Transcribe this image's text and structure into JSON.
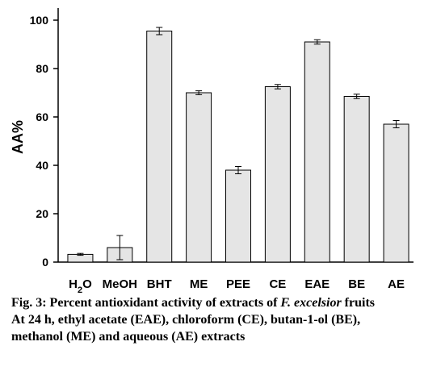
{
  "chart_data": {
    "type": "bar",
    "categories": [
      "H2O",
      "MeOH",
      "BHT",
      "ME",
      "PEE",
      "CE",
      "EAE",
      "BE",
      "AE"
    ],
    "values": [
      3.2,
      6.0,
      95.5,
      70.0,
      38.0,
      72.5,
      91.0,
      68.5,
      57.0
    ],
    "errors": [
      0.4,
      5.0,
      1.5,
      0.8,
      1.5,
      0.9,
      0.9,
      0.9,
      1.5
    ],
    "ylabel": "AA%",
    "ylim": [
      0,
      100
    ],
    "yticks": [
      0,
      20,
      40,
      60,
      80,
      100
    ],
    "grid": false,
    "legend": "none",
    "bar_color": "#e5e5e5",
    "edge_color": "#000000"
  },
  "caption": {
    "figure_label": "Fig. 3:",
    "title_prefix": "Percent antioxidant activity of extracts of",
    "species": "F. excelsior",
    "title_suffix": "fruits",
    "note_line1": "At 24 h, ethyl acetate (EAE), chloroform (CE), butan-1-ol (BE),",
    "note_line2": "methanol (ME) and aqueous (AE) extracts"
  }
}
